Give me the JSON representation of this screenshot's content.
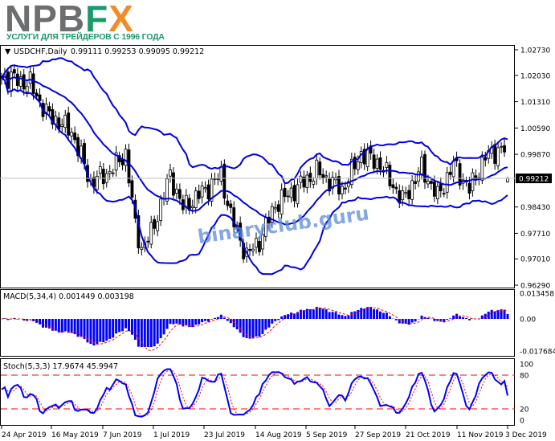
{
  "logo": {
    "npb": "NPB",
    "f": "F",
    "x": "X",
    "tagline": "УСЛУГИ ДЛЯ ТРЕЙДЕРОВ С 1996 ГОДА"
  },
  "watermark": "binaryclub.guru",
  "main": {
    "symbol_label": "USDCHF,Daily",
    "ohlc_label": "0.99111 0.99253 0.99095 0.99212",
    "current_price": "0.99212",
    "price_axis": [
      "1.02730",
      "1.02030",
      "1.01310",
      "1.00590",
      "0.99870",
      "0.99212",
      "0.98430",
      "0.97710",
      "0.97010",
      "0.96290"
    ]
  },
  "macd": {
    "label": "MACD(5,34,4) 0.001449 0.003198",
    "axis": [
      "0.013458",
      "0.00",
      "-0.017684"
    ]
  },
  "stoch": {
    "label": "Stoch(5,3,3) 17.9674 45.9947",
    "axis": [
      "100",
      "80",
      "20",
      "0"
    ]
  },
  "date_axis": [
    "24 Apr 2019",
    "16 May 2019",
    "7 Jun 2019",
    "1 Jul 2019",
    "23 Jul 2019",
    "14 Aug 2019",
    "5 Sep 2019",
    "27 Sep 2019",
    "21 Oct 2019",
    "11 Nov 2019",
    "3 Dec 2019"
  ],
  "colors": {
    "candles": "#000000",
    "bands": "#0000e0",
    "macd_hist": "#0000ff",
    "signal": "#ff0000",
    "stoch_main": "#0000ff",
    "stoch_signal": "#ff0000",
    "level_lines": "#ff0000",
    "logo_grey": "#6d6e70",
    "logo_green": "#1a9a6a",
    "logo_orange": "#f28c28",
    "watermark": "#5b8bd8"
  },
  "chart_data": {
    "type": "candlestick",
    "symbol": "USDCHF",
    "timeframe": "Daily",
    "ylim": [
      0.9629,
      1.0273
    ],
    "last": {
      "open": 0.99111,
      "high": 0.99253,
      "low": 0.99095,
      "close": 0.99212
    },
    "approx_close_path": [
      [
        "2019-04-24",
        1.0195
      ],
      [
        "2019-04-25",
        1.02
      ],
      [
        "2019-05-07",
        1.018
      ],
      [
        "2019-05-14",
        1.01
      ],
      [
        "2019-05-24",
        1.005
      ],
      [
        "2019-06-03",
        0.991
      ],
      [
        "2019-06-11",
        0.994
      ],
      [
        "2019-06-18",
        0.999
      ],
      [
        "2019-06-21",
        0.979
      ],
      [
        "2019-06-25",
        0.973
      ],
      [
        "2019-06-28",
        0.977
      ],
      [
        "2019-07-08",
        0.993
      ],
      [
        "2019-07-12",
        0.984
      ],
      [
        "2019-07-23",
        0.989
      ],
      [
        "2019-07-30",
        0.993
      ],
      [
        "2019-08-02",
        0.982
      ],
      [
        "2019-08-09",
        0.971
      ],
      [
        "2019-08-15",
        0.975
      ],
      [
        "2019-08-22",
        0.985
      ],
      [
        "2019-08-30",
        0.989
      ],
      [
        "2019-09-10",
        0.994
      ],
      [
        "2019-09-20",
        0.989
      ],
      [
        "2019-09-30",
        0.999
      ],
      [
        "2019-10-08",
        0.996
      ],
      [
        "2019-10-17",
        0.986
      ],
      [
        "2019-10-25",
        0.995
      ],
      [
        "2019-11-01",
        0.987
      ],
      [
        "2019-11-08",
        0.996
      ],
      [
        "2019-11-15",
        0.989
      ],
      [
        "2019-11-22",
        0.998
      ],
      [
        "2019-11-28",
        1.0
      ],
      [
        "2019-12-02",
        1.0
      ],
      [
        "2019-12-03",
        0.99212
      ]
    ],
    "indicators": [
      "Bollinger Bands",
      "MACD(5,34,4)",
      "Stochastic(5,3,3) levels 80/20"
    ]
  }
}
